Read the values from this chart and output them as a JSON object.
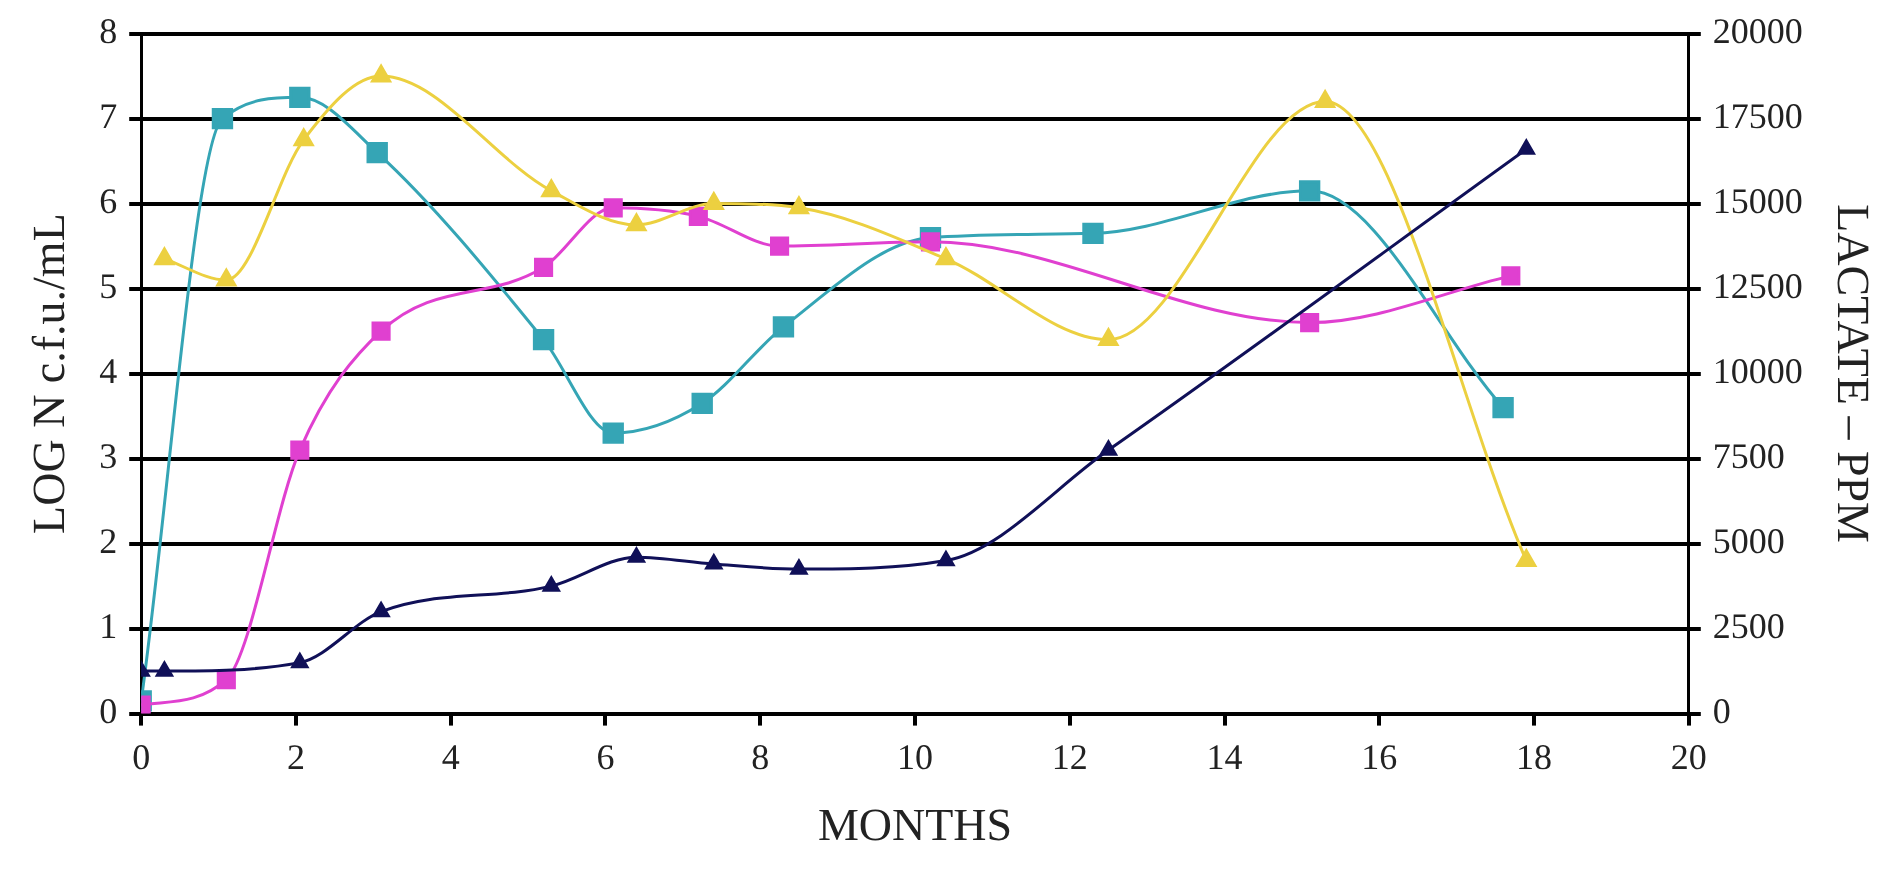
{
  "chart_data": {
    "type": "line",
    "xlabel": "MONTHS",
    "ylabel": "LOG N c.f.u./mL",
    "y2label": "LACTATE – PPM",
    "xlim": [
      0,
      20
    ],
    "xticks": [
      0,
      2,
      4,
      6,
      8,
      10,
      12,
      14,
      16,
      18,
      20
    ],
    "ylim": [
      0,
      8
    ],
    "yticks": [
      0,
      1,
      2,
      3,
      4,
      5,
      6,
      7,
      8
    ],
    "y2lim": [
      0,
      20000
    ],
    "y2ticks": [
      0,
      2500,
      5000,
      7500,
      10000,
      12500,
      15000,
      17500,
      20000
    ],
    "grid": "y",
    "legend": false,
    "series": [
      {
        "color": "#35a5b5",
        "marker": "square",
        "x": [
          0,
          1.05,
          2.05,
          3.05,
          5.2,
          6.1,
          7.25,
          8.3,
          10.2,
          12.3,
          15.1,
          17.6
        ],
        "values": [
          0.15,
          7.0,
          7.25,
          6.6,
          4.4,
          3.3,
          3.65,
          4.55,
          5.6,
          5.65,
          6.15,
          3.6
        ]
      },
      {
        "color": "#e040d0",
        "marker": "square",
        "x": [
          0,
          1.1,
          2.05,
          3.1,
          5.2,
          6.1,
          7.2,
          8.25,
          10.2,
          15.1,
          17.7
        ],
        "values": [
          0.1,
          0.4,
          3.1,
          4.5,
          5.25,
          5.95,
          5.85,
          5.5,
          5.55,
          4.6,
          5.15
        ]
      },
      {
        "color": "#ecd040",
        "marker": "triangle",
        "x": [
          0.3,
          1.1,
          2.1,
          3.1,
          5.3,
          6.4,
          7.4,
          8.5,
          10.4,
          12.5,
          15.3,
          17.9
        ],
        "values": [
          5.35,
          5.1,
          6.75,
          7.5,
          6.15,
          5.75,
          6.0,
          5.95,
          5.35,
          4.4,
          7.2,
          1.8
        ]
      },
      {
        "color": "#101058",
        "marker": "triangle",
        "axis": "y2",
        "x": [
          0,
          0.3,
          2.05,
          3.1,
          5.3,
          6.4,
          7.4,
          8.5,
          10.4,
          12.5,
          17.9
        ],
        "values": [
          1250,
          1250,
          1500,
          3000,
          3750,
          4600,
          4400,
          4250,
          4500,
          7750,
          16600
        ]
      }
    ]
  }
}
